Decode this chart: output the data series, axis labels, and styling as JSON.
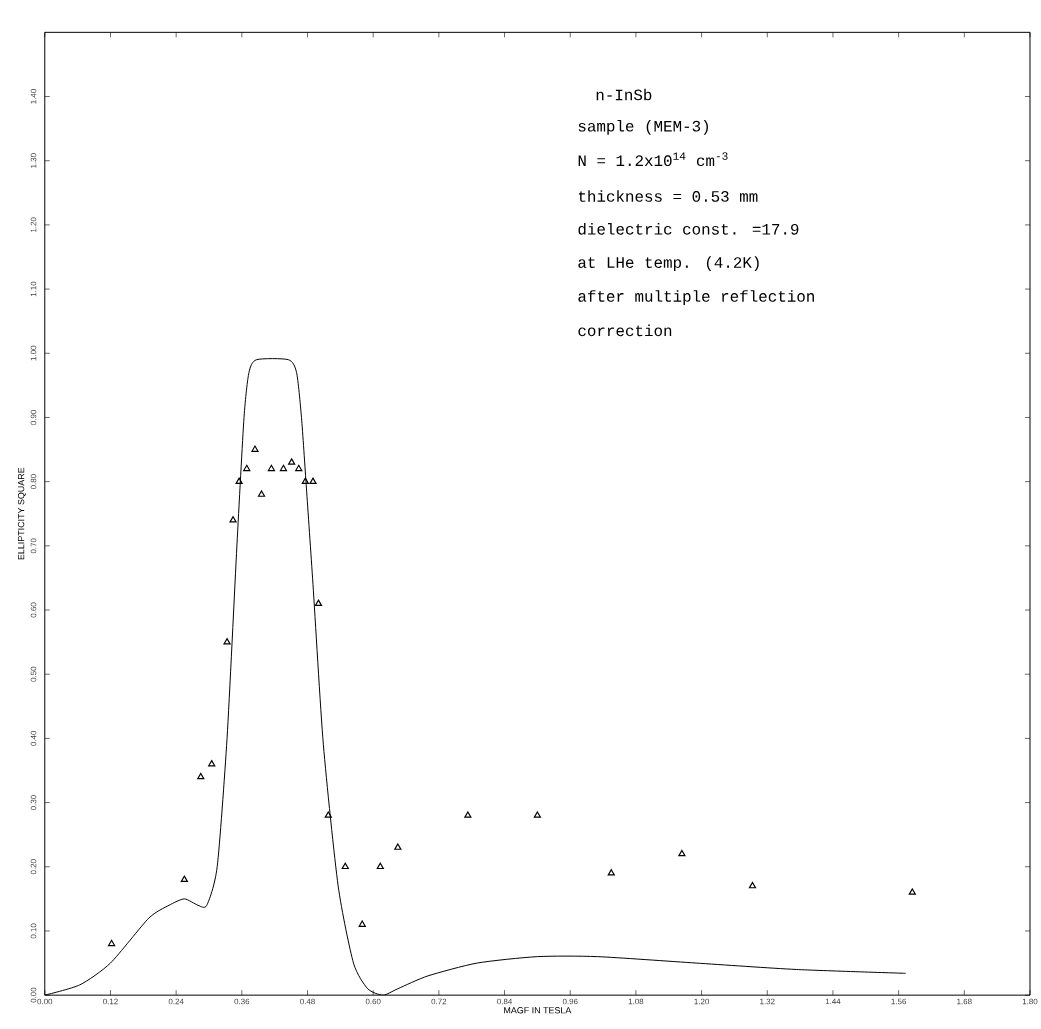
{
  "chart_data": {
    "type": "line",
    "xlabel": "MAGF IN TESLA",
    "ylabel": "ELLIPTICITY SQUARE",
    "xlim": [
      0,
      1.8
    ],
    "xticks": [
      {
        "value": 0,
        "label": "0.00"
      },
      0.12,
      0.24,
      0.36,
      0.48,
      {
        "value": 0.6,
        "label": "0.60"
      },
      0.72,
      0.84,
      0.96,
      1.08,
      {
        "value": 1.2,
        "label": "1.20"
      },
      1.32,
      1.44,
      1.56,
      1.68,
      {
        "value": 1.8,
        "label": "1.80"
      }
    ],
    "ylim": [
      0,
      1.5
    ],
    "yticks": [
      {
        "value": 0,
        "label": "0.00"
      },
      {
        "value": 0.1,
        "label": "0.10"
      },
      {
        "value": 0.2,
        "label": "0.20"
      },
      {
        "value": 0.3,
        "label": "0.30"
      },
      {
        "value": 0.4,
        "label": "0.40"
      },
      {
        "value": 0.5,
        "label": "0.50"
      },
      {
        "value": 0.6,
        "label": "0.60"
      },
      {
        "value": 0.7,
        "label": "0.70"
      },
      {
        "value": 0.8,
        "label": "0.80"
      },
      {
        "value": 0.9,
        "label": "0.90"
      },
      {
        "value": 1.0,
        "label": "1.00"
      },
      {
        "value": 1.1,
        "label": "1.10"
      },
      {
        "value": 1.2,
        "label": "1.20"
      },
      {
        "value": 1.3,
        "label": "1.30"
      },
      {
        "value": 1.4,
        "label": "1.40"
      }
    ],
    "series": [
      {
        "color": "#000000",
        "marker": "none",
        "x": [
          0,
          0.064,
          0.12,
          0.19,
          0.227,
          0.255,
          0.28,
          0.296,
          0.315,
          0.333,
          0.351,
          0.364,
          0.373,
          0.387,
          0.445,
          0.46,
          0.469,
          0.478,
          0.49,
          0.509,
          0.536,
          0.564,
          0.59,
          0.618,
          0.645,
          0.7,
          0.79,
          0.9,
          1.01,
          1.19,
          1.373,
          1.573
        ],
        "values": [
          0,
          0.016,
          0.05,
          0.12,
          0.14,
          0.15,
          0.14,
          0.14,
          0.2,
          0.4,
          0.7,
          0.9,
          0.97,
          0.99,
          0.99,
          0.97,
          0.9,
          0.79,
          0.64,
          0.39,
          0.17,
          0.05,
          0.01,
          0,
          0.01,
          0.03,
          0.05,
          0.06,
          0.06,
          0.05,
          0.04,
          0.034
        ]
      },
      {
        "type": "scatter",
        "color": "#000000",
        "marker": "triangle",
        "x": [
          0.122,
          0.255,
          0.285,
          0.305,
          0.333,
          0.344,
          0.355,
          0.369,
          0.384,
          0.396,
          0.414,
          0.436,
          0.451,
          0.464,
          0.476,
          0.49,
          0.5,
          0.518,
          0.549,
          0.58,
          0.613,
          0.645,
          0.773,
          0.9,
          1.035,
          1.164,
          1.293,
          1.585
        ],
        "values": [
          0.08,
          0.18,
          0.34,
          0.36,
          0.55,
          0.74,
          0.8,
          0.82,
          0.85,
          0.78,
          0.82,
          0.82,
          0.83,
          0.82,
          0.8,
          0.8,
          0.61,
          0.28,
          0.2,
          0.11,
          0.2,
          0.23,
          0.28,
          0.28,
          0.19,
          0.22,
          0.17,
          0.16
        ]
      }
    ],
    "annotations": [
      "n-InSb",
      "sample (MEM-3)",
      "N = 1.2x10$^{14}$ cm$^{-3}$",
      "thickness = 0.53 mm",
      "dielectric const. =17.9",
      "at LHe temp. (4.2K)",
      "after multiple reflection",
      "correction"
    ]
  }
}
